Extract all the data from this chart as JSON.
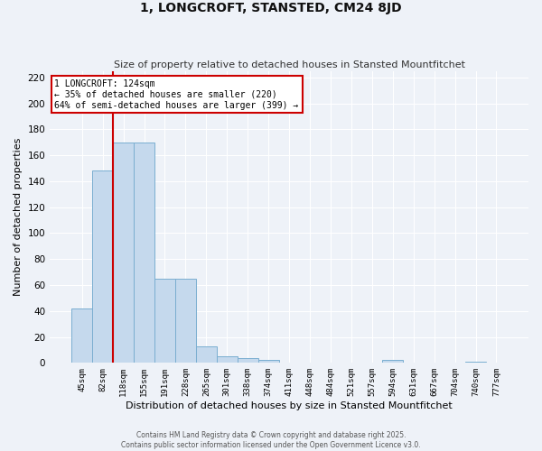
{
  "title": "1, LONGCROFT, STANSTED, CM24 8JD",
  "subtitle": "Size of property relative to detached houses in Stansted Mountfitchet",
  "xlabel": "Distribution of detached houses by size in Stansted Mountfitchet",
  "ylabel": "Number of detached properties",
  "categories": [
    "45sqm",
    "82sqm",
    "118sqm",
    "155sqm",
    "191sqm",
    "228sqm",
    "265sqm",
    "301sqm",
    "338sqm",
    "374sqm",
    "411sqm",
    "448sqm",
    "484sqm",
    "521sqm",
    "557sqm",
    "594sqm",
    "631sqm",
    "667sqm",
    "704sqm",
    "740sqm",
    "777sqm"
  ],
  "values": [
    42,
    148,
    170,
    170,
    65,
    65,
    13,
    5,
    4,
    2,
    0,
    0,
    0,
    0,
    0,
    2,
    0,
    0,
    0,
    1,
    0
  ],
  "bar_color": "#c5d9ed",
  "bar_edge_color": "#7aaed0",
  "vline_index": 2,
  "vline_color": "#cc0000",
  "annotation_text": "1 LONGCROFT: 124sqm\n← 35% of detached houses are smaller (220)\n64% of semi-detached houses are larger (399) →",
  "annotation_box_color": "#ffffff",
  "annotation_box_edge_color": "#cc0000",
  "ylim": [
    0,
    225
  ],
  "yticks": [
    0,
    20,
    40,
    60,
    80,
    100,
    120,
    140,
    160,
    180,
    200,
    220
  ],
  "background_color": "#eef2f8",
  "grid_color": "#ffffff",
  "footer_line1": "Contains HM Land Registry data © Crown copyright and database right 2025.",
  "footer_line2": "Contains public sector information licensed under the Open Government Licence v3.0."
}
